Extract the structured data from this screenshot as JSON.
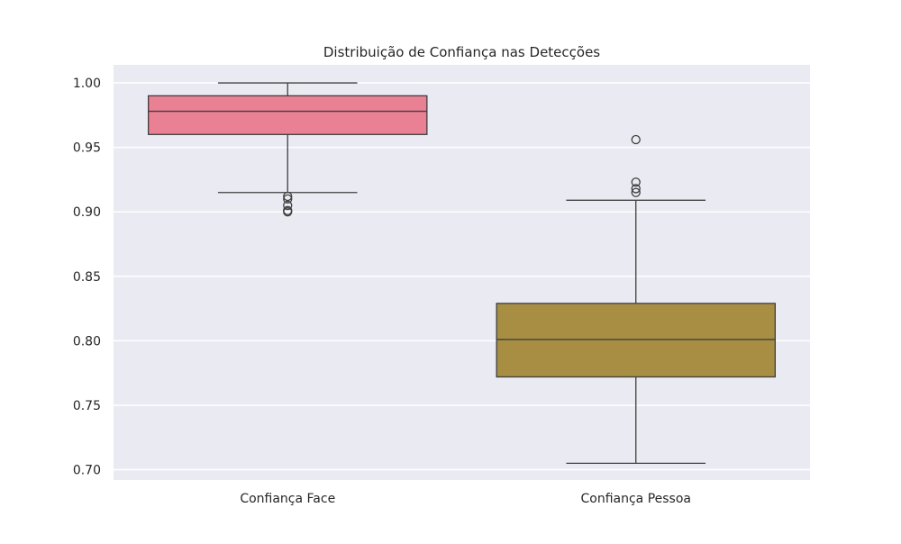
{
  "chart_data": {
    "type": "boxplot",
    "title": "Distribuição de Confiança nas Detecções",
    "xlabel": "",
    "ylabel": "",
    "ylim": [
      0.692,
      1.014
    ],
    "yticks": [
      0.7,
      0.75,
      0.8,
      0.85,
      0.9,
      0.95,
      1.0
    ],
    "ytick_labels": [
      "0.70",
      "0.75",
      "0.80",
      "0.85",
      "0.90",
      "0.95",
      "1.00"
    ],
    "grid": true,
    "legend": "none",
    "categories": [
      "Confiança Face",
      "Confiança Pessoa"
    ],
    "boxes": [
      {
        "category": "Confiança Face",
        "color": "#ea8094",
        "whisker_low": 0.915,
        "q1": 0.96,
        "median": 0.978,
        "q3": 0.99,
        "whisker_high": 1.0,
        "outliers": [
          0.912,
          0.91,
          0.905,
          0.901,
          0.9
        ]
      },
      {
        "category": "Confiança Pessoa",
        "color": "#a88e43",
        "whisker_low": 0.705,
        "q1": 0.772,
        "median": 0.801,
        "q3": 0.829,
        "whisker_high": 0.909,
        "outliers": [
          0.915,
          0.918,
          0.923,
          0.956
        ]
      }
    ],
    "colors": {
      "plot_background": "#eaeaf2",
      "grid": "#ffffff",
      "line": "#3f3f3f"
    }
  }
}
